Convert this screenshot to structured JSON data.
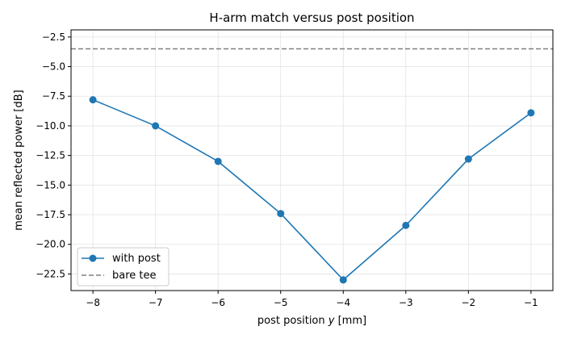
{
  "chart_data": {
    "type": "line",
    "title": "H-arm match versus post position",
    "xlabel_prefix": "post position ",
    "xlabel_var": "y",
    "xlabel_suffix": " [mm]",
    "ylabel": "mean reflected power [dB]",
    "xlim": [
      -8.35,
      -0.65
    ],
    "ylim": [
      -23.9,
      -1.9
    ],
    "x_ticks": [
      -8,
      -7,
      -6,
      -5,
      -4,
      -3,
      -2,
      -1
    ],
    "x_tick_labels": [
      "−8",
      "−7",
      "−6",
      "−5",
      "−4",
      "−3",
      "−2",
      "−1"
    ],
    "y_ticks": [
      -2.5,
      -5.0,
      -7.5,
      -10.0,
      -12.5,
      -15.0,
      -17.5,
      -20.0,
      -22.5
    ],
    "y_tick_labels": [
      "−2.5",
      "−5.0",
      "−7.5",
      "−10.0",
      "−12.5",
      "−15.0",
      "−17.5",
      "−20.0",
      "−22.5"
    ],
    "grid": true,
    "legend_position": "lower-left",
    "series": [
      {
        "name": "with post",
        "color": "#1f77b4",
        "marker": "circle",
        "x": [
          -8,
          -7,
          -6,
          -5,
          -4,
          -3,
          -2,
          -1
        ],
        "y": [
          -7.8,
          -10.0,
          -13.0,
          -17.4,
          -23.0,
          -18.4,
          -12.8,
          -8.9
        ]
      }
    ],
    "reference_line": {
      "name": "bare tee",
      "color": "#7f7f7f",
      "style": "dashed",
      "y": -3.5
    }
  }
}
